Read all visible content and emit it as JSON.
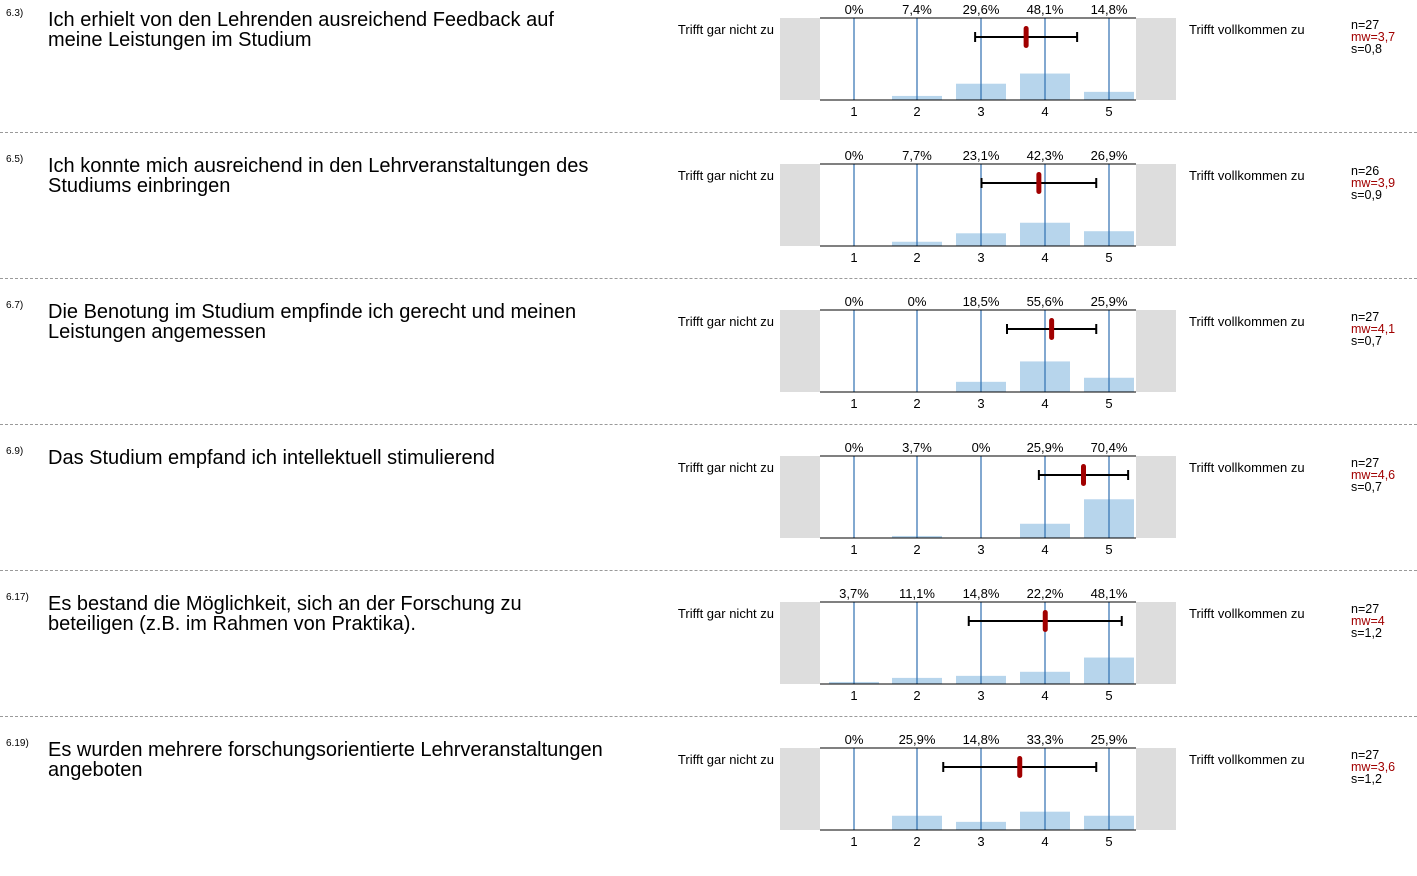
{
  "scale_left_label": "Trifft gar nicht zu",
  "scale_right_label": "Trifft vollkommen zu",
  "categories": [
    "1",
    "2",
    "3",
    "4",
    "5"
  ],
  "colors": {
    "bar": "#b7d5ec",
    "gridline": "#2f6fb0",
    "mean": "#a10000",
    "side_panel": "#dddddd",
    "errorbar": "#000000"
  },
  "questions": [
    {
      "number": "6.3)",
      "text": "Ich erhielt von den Lehrenden ausreichend Feedback auf meine Leistungen im Studium",
      "n": "n=27",
      "mw": "mw=3,7",
      "s": "s=0,8"
    },
    {
      "number": "6.5)",
      "text": "Ich konnte mich ausreichend in den Lehrveranstaltungen des Studiums einbringen",
      "n": "n=26",
      "mw": "mw=3,9",
      "s": "s=0,9"
    },
    {
      "number": "6.7)",
      "text": "Die Benotung im Studium empfinde ich gerecht und meinen Leistungen angemessen",
      "n": "n=27",
      "mw": "mw=4,1",
      "s": "s=0,7"
    },
    {
      "number": "6.9)",
      "text": "Das Studium empfand ich intellektuell stimulierend",
      "n": "n=27",
      "mw": "mw=4,6",
      "s": "s=0,7"
    },
    {
      "number": "6.17)",
      "text": "Es bestand die Möglichkeit, sich an der Forschung zu beteiligen (z.B. im Rahmen von Praktika).",
      "n": "n=27",
      "mw": "mw=4",
      "s": "s=1,2"
    },
    {
      "number": "6.19)",
      "text": "Es wurden mehrere forschungsorientierte Lehrveranstaltungen angeboten",
      "n": "n=27",
      "mw": "mw=3,6",
      "s": "s=1,2"
    }
  ],
  "chart_data": [
    {
      "type": "bar",
      "categories": [
        "1",
        "2",
        "3",
        "4",
        "5"
      ],
      "values": [
        0,
        7.4,
        29.6,
        48.1,
        14.8
      ],
      "value_labels": [
        "0%",
        "7,4%",
        "29,6%",
        "48,1%",
        "14,8%"
      ],
      "mean": 3.7,
      "sd": 0.8,
      "n": 27
    },
    {
      "type": "bar",
      "categories": [
        "1",
        "2",
        "3",
        "4",
        "5"
      ],
      "values": [
        0,
        7.7,
        23.1,
        42.3,
        26.9
      ],
      "value_labels": [
        "0%",
        "7,7%",
        "23,1%",
        "42,3%",
        "26,9%"
      ],
      "mean": 3.9,
      "sd": 0.9,
      "n": 26
    },
    {
      "type": "bar",
      "categories": [
        "1",
        "2",
        "3",
        "4",
        "5"
      ],
      "values": [
        0,
        0,
        18.5,
        55.6,
        25.9
      ],
      "value_labels": [
        "0%",
        "0%",
        "18,5%",
        "55,6%",
        "25,9%"
      ],
      "mean": 4.1,
      "sd": 0.7,
      "n": 27
    },
    {
      "type": "bar",
      "categories": [
        "1",
        "2",
        "3",
        "4",
        "5"
      ],
      "values": [
        0,
        3.7,
        0,
        25.9,
        70.4
      ],
      "value_labels": [
        "0%",
        "3,7%",
        "0%",
        "25,9%",
        "70,4%"
      ],
      "mean": 4.6,
      "sd": 0.7,
      "n": 27
    },
    {
      "type": "bar",
      "categories": [
        "1",
        "2",
        "3",
        "4",
        "5"
      ],
      "values": [
        3.7,
        11.1,
        14.8,
        22.2,
        48.1
      ],
      "value_labels": [
        "3,7%",
        "11,1%",
        "14,8%",
        "22,2%",
        "48,1%"
      ],
      "mean": 4.0,
      "sd": 1.2,
      "n": 27
    },
    {
      "type": "bar",
      "categories": [
        "1",
        "2",
        "3",
        "4",
        "5"
      ],
      "values": [
        0,
        25.9,
        14.8,
        33.3,
        25.9
      ],
      "value_labels": [
        "0%",
        "25,9%",
        "14,8%",
        "33,3%",
        "25,9%"
      ],
      "mean": 3.6,
      "sd": 1.2,
      "n": 27
    }
  ]
}
